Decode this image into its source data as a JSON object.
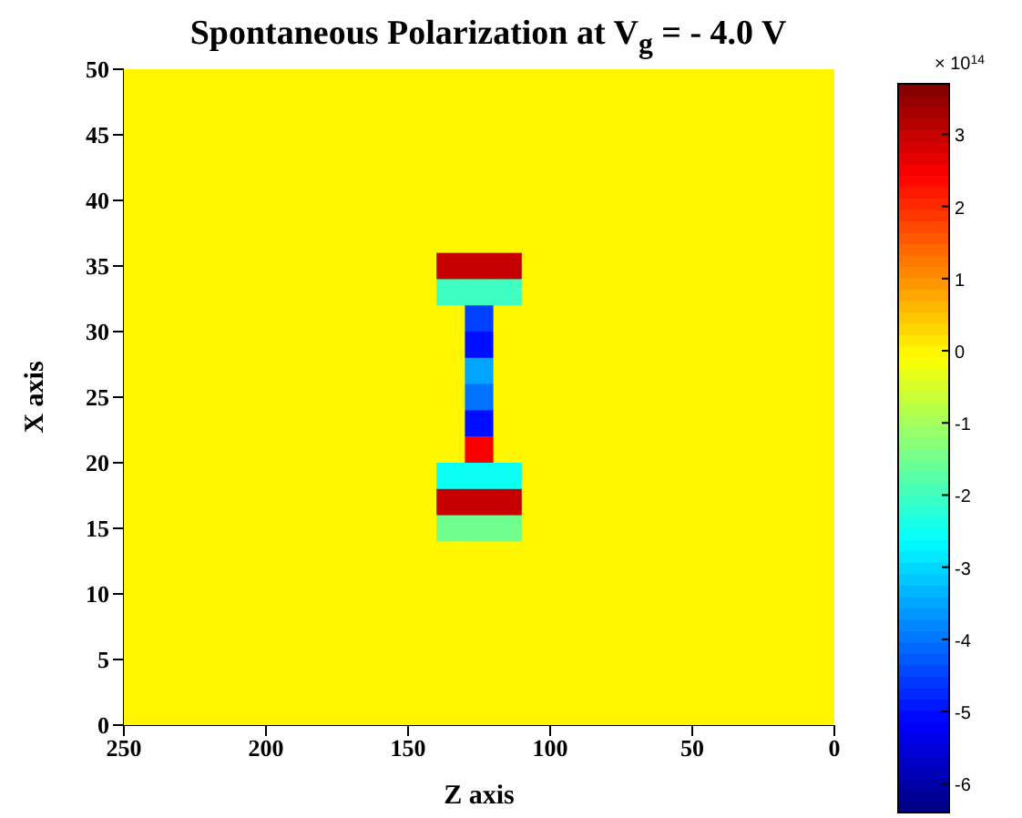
{
  "chart_data": {
    "type": "heatmap",
    "title": "Spontaneous Polarization at V$_{g}$ = - 4.0 V",
    "xlabel": "Z axis",
    "ylabel": "X axis",
    "clabel": "× 10$^{14}$",
    "x": [
      245,
      235,
      225,
      215,
      205,
      195,
      185,
      175,
      165,
      155,
      145,
      135,
      125,
      115,
      105,
      95,
      85,
      75,
      65,
      55,
      45,
      35,
      25,
      15,
      5
    ],
    "xlim": [
      250,
      0
    ],
    "xticks": [
      250,
      200,
      150,
      100,
      50,
      0
    ],
    "ylim": [
      0,
      50
    ],
    "yticks": [
      0,
      5,
      10,
      15,
      20,
      25,
      30,
      35,
      40,
      45,
      50
    ],
    "clim": [
      -6.4,
      3.7
    ],
    "cticks": [
      -6,
      -5,
      -4,
      -3,
      -2,
      -1,
      0,
      1,
      2,
      3
    ],
    "cells": [
      [
        0,
        0,
        0,
        0,
        0,
        0,
        0,
        0,
        0,
        0,
        0,
        0,
        0,
        0,
        0,
        0,
        0,
        0,
        0,
        0,
        0,
        0,
        0,
        0,
        0
      ],
      [
        0,
        0,
        0,
        0,
        0,
        0,
        0,
        0,
        0,
        0,
        0,
        0,
        0,
        0,
        0,
        0,
        0,
        0,
        0,
        0,
        0,
        0,
        0,
        0,
        0
      ],
      [
        0,
        0,
        0,
        0,
        0,
        0,
        0,
        0,
        0,
        0,
        0,
        0,
        0,
        0,
        0,
        0,
        0,
        0,
        0,
        0,
        0,
        0,
        0,
        0,
        0
      ],
      [
        0,
        0,
        0,
        0,
        0,
        0,
        0,
        0,
        0,
        0,
        0,
        0,
        0,
        0,
        0,
        0,
        0,
        0,
        0,
        0,
        0,
        0,
        0,
        0,
        0
      ],
      [
        0,
        0,
        0,
        0,
        0,
        0,
        0,
        0,
        0,
        0,
        0,
        0,
        0,
        0,
        0,
        0,
        0,
        0,
        0,
        0,
        0,
        0,
        0,
        0,
        0
      ],
      [
        0,
        0,
        0,
        0,
        0,
        0,
        0,
        0,
        0,
        0,
        0,
        0,
        0,
        0,
        0,
        0,
        0,
        0,
        0,
        0,
        0,
        0,
        0,
        0,
        0
      ],
      [
        0,
        0,
        0,
        0,
        0,
        0,
        0,
        0,
        0,
        0,
        0,
        0,
        0,
        0,
        0,
        0,
        0,
        0,
        0,
        0,
        0,
        0,
        0,
        0,
        0
      ],
      [
        0,
        0,
        0,
        0,
        0,
        0,
        0,
        0,
        0,
        0,
        0,
        3,
        3,
        3,
        0,
        0,
        0,
        0,
        0,
        0,
        0,
        0,
        0,
        0,
        0
      ],
      [
        0,
        0,
        0,
        0,
        0,
        0,
        0,
        0,
        0,
        0,
        0,
        -2,
        -2,
        -2,
        0,
        0,
        0,
        0,
        0,
        0,
        0,
        0,
        0,
        0,
        0
      ],
      [
        0,
        0,
        0,
        0,
        0,
        0,
        0,
        0,
        0,
        0,
        0,
        0,
        -4.5,
        0,
        0,
        0,
        0,
        0,
        0,
        0,
        0,
        0,
        0,
        0,
        0
      ],
      [
        0,
        0,
        0,
        0,
        0,
        0,
        0,
        0,
        0,
        0,
        0,
        0,
        -5,
        0,
        0,
        0,
        0,
        0,
        0,
        0,
        0,
        0,
        0,
        0,
        0
      ],
      [
        0,
        0,
        0,
        0,
        0,
        0,
        0,
        0,
        0,
        0,
        0,
        0,
        -3.5,
        0,
        0,
        0,
        0,
        0,
        0,
        0,
        0,
        0,
        0,
        0,
        0
      ],
      [
        0,
        0,
        0,
        0,
        0,
        0,
        0,
        0,
        0,
        0,
        0,
        0,
        -4,
        0,
        0,
        0,
        0,
        0,
        0,
        0,
        0,
        0,
        0,
        0,
        0
      ],
      [
        0,
        0,
        0,
        0,
        0,
        0,
        0,
        0,
        0,
        0,
        0,
        0,
        -5,
        0,
        0,
        0,
        0,
        0,
        0,
        0,
        0,
        0,
        0,
        0,
        0
      ],
      [
        0,
        0,
        0,
        0,
        0,
        0,
        0,
        0,
        0,
        0,
        0,
        0,
        2.5,
        0,
        0,
        0,
        0,
        0,
        0,
        0,
        0,
        0,
        0,
        0,
        0
      ],
      [
        0,
        0,
        0,
        0,
        0,
        0,
        0,
        0,
        0,
        0,
        0,
        -2.5,
        -2.5,
        -2.5,
        0,
        0,
        0,
        0,
        0,
        0,
        0,
        0,
        0,
        0,
        0
      ],
      [
        0,
        0,
        0,
        0,
        0,
        0,
        0,
        0,
        0,
        0,
        0,
        3,
        3,
        3,
        0,
        0,
        0,
        0,
        0,
        0,
        0,
        0,
        0,
        0,
        0
      ],
      [
        0,
        0,
        0,
        0,
        0,
        0,
        0,
        0,
        0,
        0,
        0,
        -1.5,
        -1.5,
        -1.5,
        0,
        0,
        0,
        0,
        0,
        0,
        0,
        0,
        0,
        0,
        0
      ],
      [
        0,
        0,
        0,
        0,
        0,
        0,
        0,
        0,
        0,
        0,
        0,
        0,
        0,
        0,
        0,
        0,
        0,
        0,
        0,
        0,
        0,
        0,
        0,
        0,
        0
      ],
      [
        0,
        0,
        0,
        0,
        0,
        0,
        0,
        0,
        0,
        0,
        0,
        0,
        0,
        0,
        0,
        0,
        0,
        0,
        0,
        0,
        0,
        0,
        0,
        0,
        0
      ],
      [
        0,
        0,
        0,
        0,
        0,
        0,
        0,
        0,
        0,
        0,
        0,
        0,
        0,
        0,
        0,
        0,
        0,
        0,
        0,
        0,
        0,
        0,
        0,
        0,
        0
      ],
      [
        0,
        0,
        0,
        0,
        0,
        0,
        0,
        0,
        0,
        0,
        0,
        0,
        0,
        0,
        0,
        0,
        0,
        0,
        0,
        0,
        0,
        0,
        0,
        0,
        0
      ],
      [
        0,
        0,
        0,
        0,
        0,
        0,
        0,
        0,
        0,
        0,
        0,
        0,
        0,
        0,
        0,
        0,
        0,
        0,
        0,
        0,
        0,
        0,
        0,
        0,
        0
      ],
      [
        0,
        0,
        0,
        0,
        0,
        0,
        0,
        0,
        0,
        0,
        0,
        0,
        0,
        0,
        0,
        0,
        0,
        0,
        0,
        0,
        0,
        0,
        0,
        0,
        0
      ],
      [
        0,
        0,
        0,
        0,
        0,
        0,
        0,
        0,
        0,
        0,
        0,
        0,
        0,
        0,
        0,
        0,
        0,
        0,
        0,
        0,
        0,
        0,
        0,
        0,
        0
      ]
    ]
  }
}
